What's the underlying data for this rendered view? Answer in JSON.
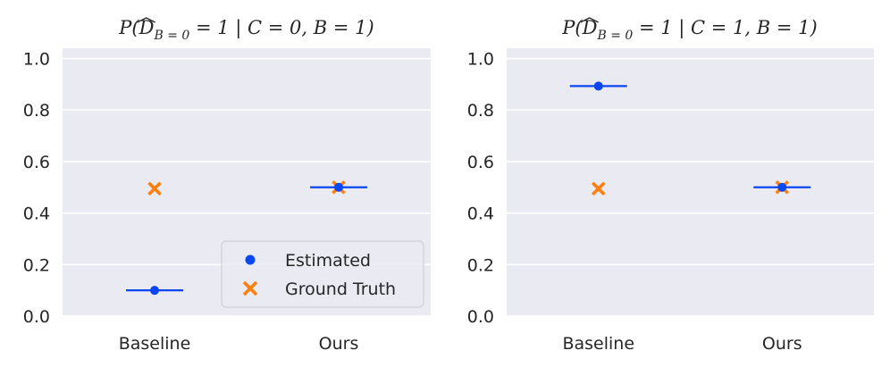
{
  "chart_data": [
    {
      "type": "scatter",
      "title": "P(D̂_B=0 = 1 | C = 0, B = 1)",
      "title_parts": {
        "p": "P(",
        "d": "D",
        "sub": "B = 0",
        "rest": " = 1 | C = 0, B = 1)"
      },
      "categories": [
        "Baseline",
        "Ours"
      ],
      "ylim": [
        0,
        1.04
      ],
      "yticks": [
        "0.0",
        "0.2",
        "0.4",
        "0.6",
        "0.8",
        "1.0"
      ],
      "grid": true,
      "series": [
        {
          "name": "Estimated",
          "marker": "circle",
          "values": [
            0.1,
            0.5
          ],
          "color": "#0a47f0"
        },
        {
          "name": "Ground Truth",
          "marker": "x",
          "values": [
            0.495,
            0.5
          ],
          "color": "#ff7f0e"
        }
      ],
      "legend": {
        "placement": "lower-right"
      }
    },
    {
      "type": "scatter",
      "title": "P(D̂_B=0 = 1 | C = 1, B = 1)",
      "title_parts": {
        "p": "P(",
        "d": "D",
        "sub": "B = 0",
        "rest": " = 1 | C = 1, B = 1)"
      },
      "categories": [
        "Baseline",
        "Ours"
      ],
      "ylim": [
        0,
        1.04
      ],
      "yticks": [
        "0.0",
        "0.2",
        "0.4",
        "0.6",
        "0.8",
        "1.0"
      ],
      "grid": true,
      "series": [
        {
          "name": "Estimated",
          "marker": "circle",
          "values": [
            0.893,
            0.5
          ],
          "color": "#0a47f0"
        },
        {
          "name": "Ground Truth",
          "marker": "x",
          "values": [
            0.495,
            0.5
          ],
          "color": "#ff7f0e"
        }
      ]
    }
  ],
  "legend_labels": {
    "estimated": "Estimated",
    "ground_truth": "Ground Truth"
  }
}
